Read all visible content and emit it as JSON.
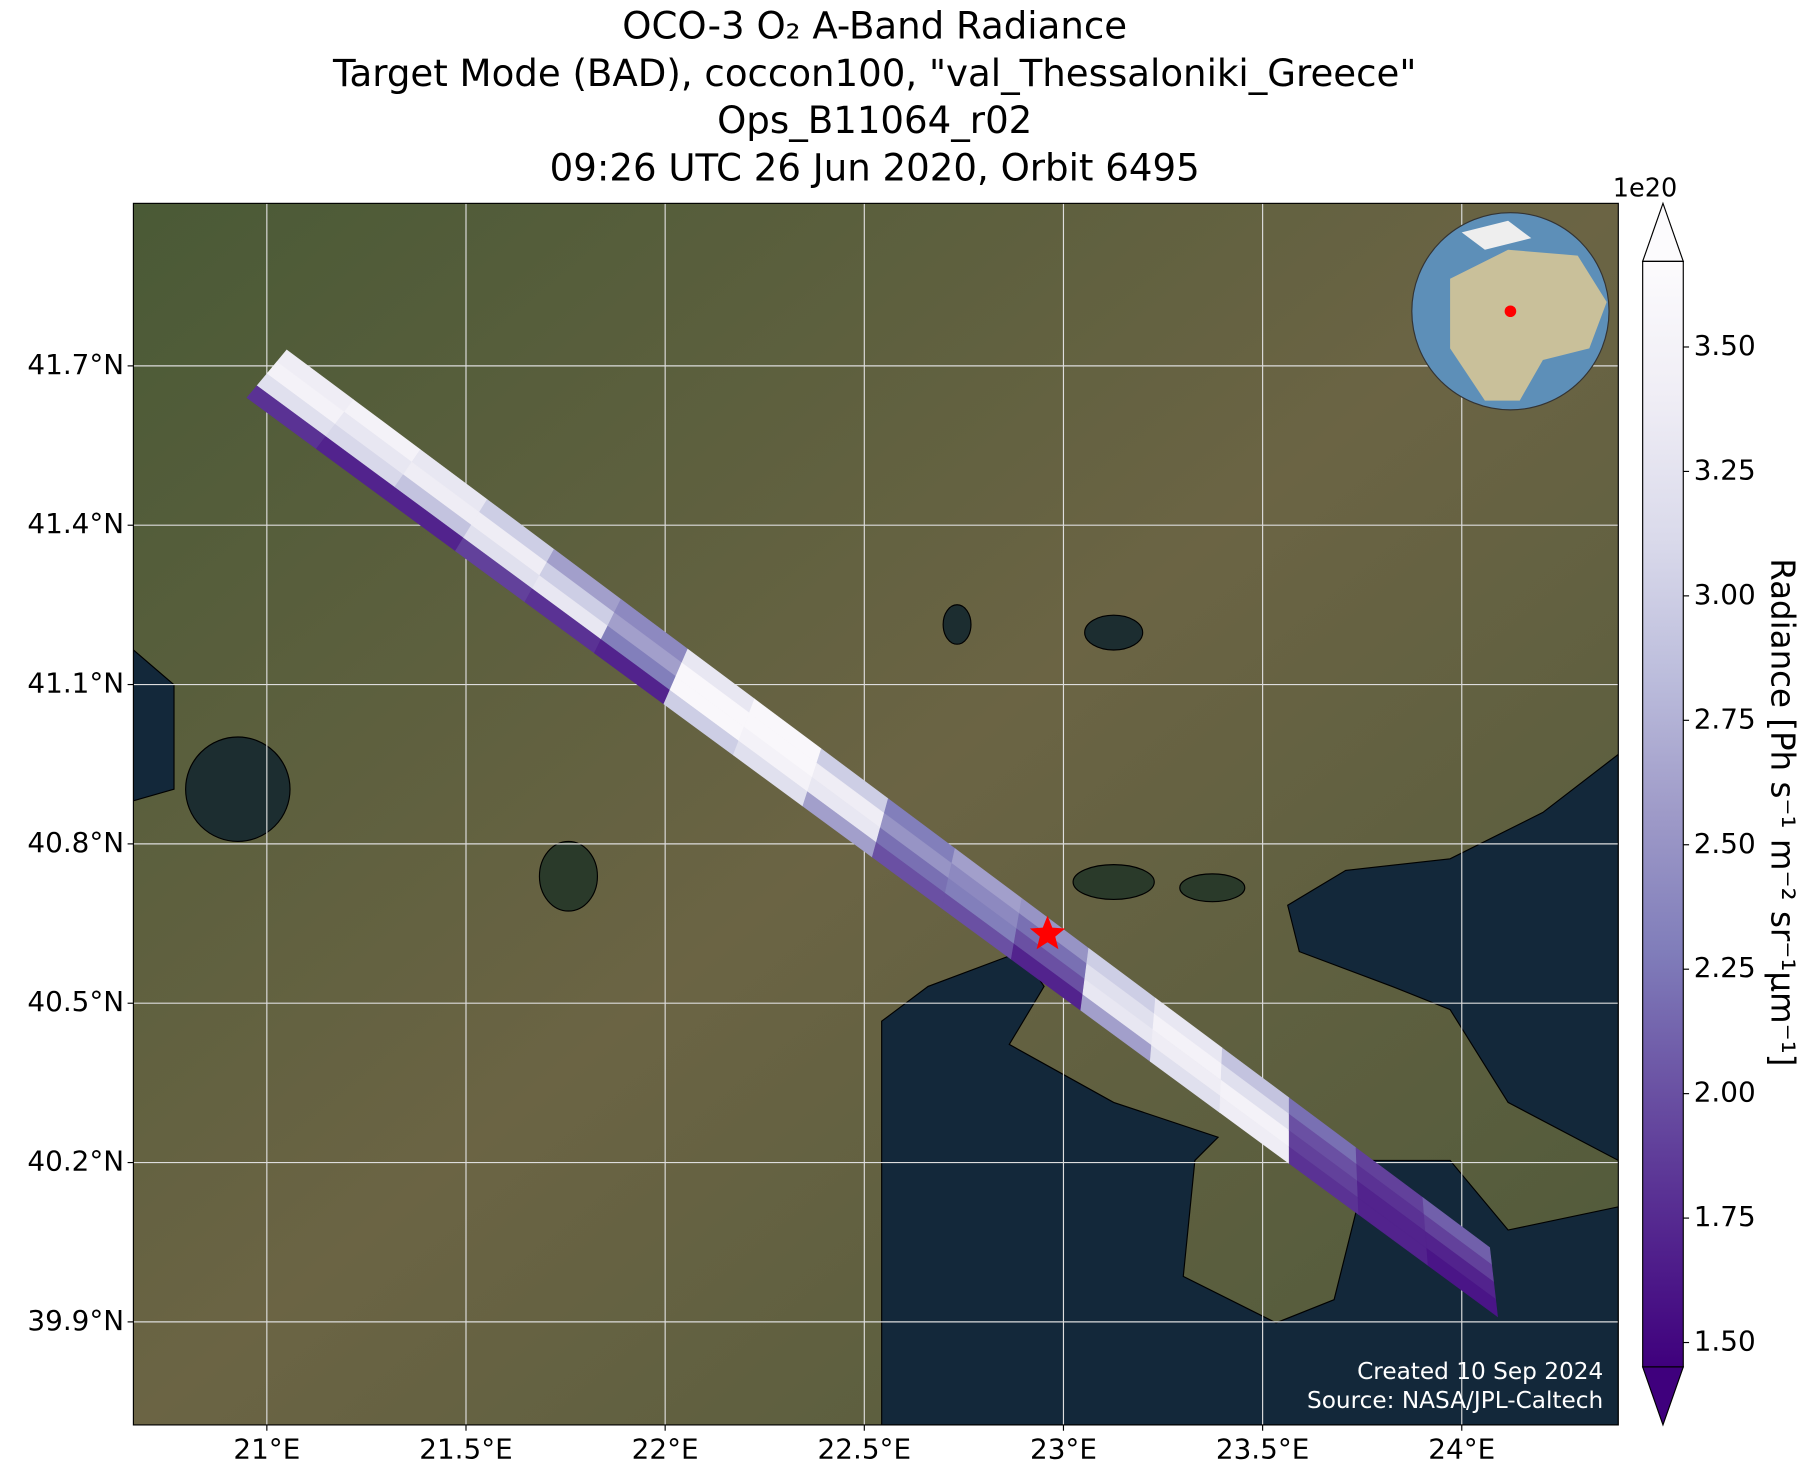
{
  "chart_data": {
    "type": "map",
    "title": [
      "OCO-3 O₂ A-Band Radiance",
      "Target Mode (BAD), coccon100, \"val_Thessaloniki_Greece\"",
      "Ops_B11064_r02",
      "09:26 UTC 26 Jun 2020, Orbit 6495"
    ],
    "xlim": [
      20.665,
      24.393
    ],
    "ylim": [
      39.706,
      42.006
    ],
    "xticks": [
      {
        "value": 21,
        "label": "21°E"
      },
      {
        "value": 21.5,
        "label": "21.5°E"
      },
      {
        "value": 22,
        "label": "22°E"
      },
      {
        "value": 22.5,
        "label": "22.5°E"
      },
      {
        "value": 23,
        "label": "23°E"
      },
      {
        "value": 23.5,
        "label": "23.5°E"
      },
      {
        "value": 24,
        "label": "24°E"
      }
    ],
    "yticks": [
      {
        "value": 39.9,
        "label": "39.9°N"
      },
      {
        "value": 40.2,
        "label": "40.2°N"
      },
      {
        "value": 40.5,
        "label": "40.5°N"
      },
      {
        "value": 40.8,
        "label": "40.8°N"
      },
      {
        "value": 41.1,
        "label": "41.1°N"
      },
      {
        "value": 41.4,
        "label": "41.4°N"
      },
      {
        "value": 41.7,
        "label": "41.7°N"
      }
    ],
    "grid": true,
    "colormap": "Purples",
    "clim": [
      1.451,
      3.672
    ],
    "cticks": [
      {
        "value": 1.5,
        "label": "1.50"
      },
      {
        "value": 1.75,
        "label": "1.75"
      },
      {
        "value": 2.0,
        "label": "2.00"
      },
      {
        "value": 2.25,
        "label": "2.25"
      },
      {
        "value": 2.5,
        "label": "2.50"
      },
      {
        "value": 2.75,
        "label": "2.75"
      },
      {
        "value": 3.0,
        "label": "3.00"
      },
      {
        "value": 3.25,
        "label": "3.25"
      },
      {
        "value": 3.5,
        "label": "3.50"
      }
    ],
    "colorbar_label": "Radiance [Ph s⁻¹ m⁻² sr⁻¹μm⁻¹]",
    "colorbar_offset": "1e20",
    "swath": {
      "start_top": [
        21.05,
        41.73
      ],
      "end_top": [
        24.07,
        40.04
      ],
      "start_bottom": [
        20.95,
        41.64
      ],
      "end_bottom": [
        24.09,
        39.91
      ],
      "values": [
        [
          3.4,
          3.5,
          3.2,
          1.8
        ],
        [
          3.5,
          3.3,
          3.1,
          1.7
        ],
        [
          3.3,
          3.4,
          2.9,
          1.7
        ],
        [
          3.0,
          3.4,
          3.2,
          1.9
        ],
        [
          2.6,
          3.0,
          3.3,
          1.8
        ],
        [
          2.4,
          2.6,
          2.3,
          1.7
        ],
        [
          3.3,
          3.6,
          3.6,
          3.0
        ],
        [
          3.6,
          3.6,
          3.5,
          3.2
        ],
        [
          3.0,
          3.4,
          3.3,
          2.6
        ],
        [
          2.3,
          2.5,
          2.2,
          2.0
        ],
        [
          2.6,
          2.4,
          2.3,
          2.0
        ],
        [
          2.5,
          2.2,
          2.0,
          1.7
        ],
        [
          3.0,
          3.2,
          3.3,
          2.6
        ],
        [
          3.3,
          3.5,
          3.4,
          3.2
        ],
        [
          2.9,
          3.2,
          3.5,
          3.4
        ],
        [
          2.2,
          2.0,
          1.9,
          1.8
        ],
        [
          1.9,
          1.8,
          1.7,
          1.7
        ],
        [
          2.1,
          1.9,
          1.7,
          1.6
        ]
      ]
    },
    "target": {
      "lon": 22.96,
      "lat": 40.63,
      "color": "#ff0000"
    },
    "annotations": [
      "Created 10 Sep 2024",
      "Source: NASA/JPL-Caltech"
    ]
  }
}
